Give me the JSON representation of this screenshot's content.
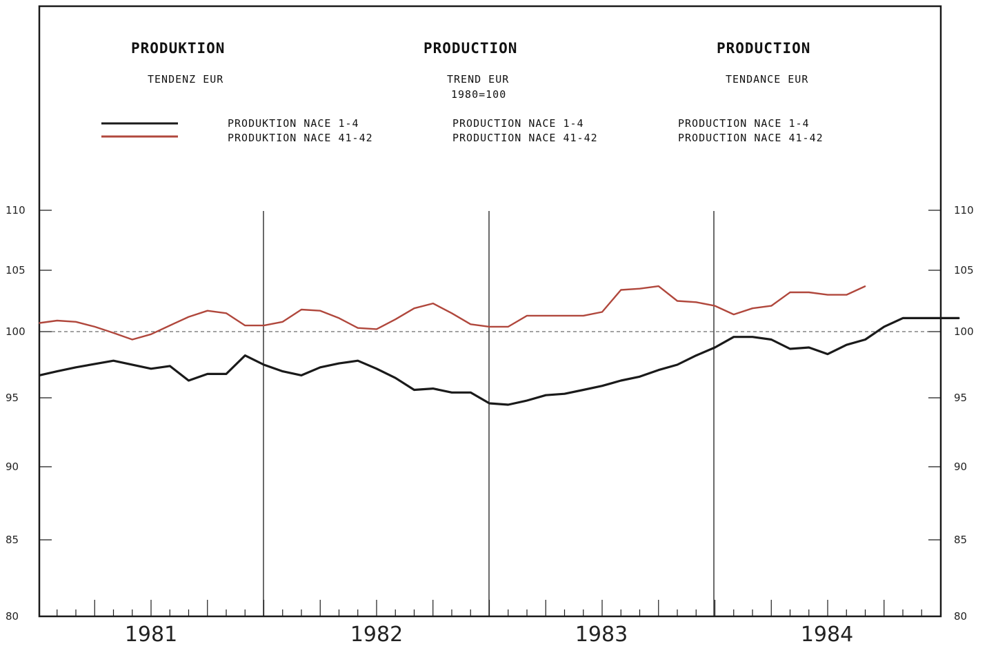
{
  "headers": {
    "de": {
      "title": "PRODUKTION",
      "subtitle": "TENDENZ EUR",
      "legend_1": "PRODUKTION NACE 1-4",
      "legend_2": "PRODUKTION NACE 41-42"
    },
    "en": {
      "title": "PRODUCTION",
      "subtitle": "TREND EUR",
      "base": "1980=100",
      "legend_1": "PRODUCTION NACE 1-4",
      "legend_2": "PRODUCTION NACE 41-42"
    },
    "fr": {
      "title": "PRODUCTION",
      "subtitle": "TENDANCE EUR",
      "legend_1": "PRODUCTION NACE 1-4",
      "legend_2": "PRODUCTION NACE 41-42"
    }
  },
  "colors": {
    "series_1": "#1a1a1a",
    "series_2": "#b0473c",
    "axis": "#1a1a1a",
    "reference": "#444444"
  },
  "chart_data": {
    "type": "line",
    "x_unit": "month index from Jan 1981 (0 = Jan 1981)",
    "x_categories": [
      "1981",
      "1982",
      "1983",
      "1984"
    ],
    "y_ticks": [
      80,
      85,
      90,
      95,
      100,
      105,
      110
    ],
    "ylim": [
      80,
      112
    ],
    "reference_line": 100,
    "year_dividers": [
      "1981/1982",
      "1982/1983",
      "1983/1984"
    ],
    "grid": false,
    "legend": "top",
    "series": [
      {
        "name": "PRODUKTION NACE 1-4",
        "points": [
          [
            -6,
            96.7
          ],
          [
            -5,
            97.0
          ],
          [
            -4,
            97.3
          ],
          [
            -2,
            97.8
          ],
          [
            0,
            97.2
          ],
          [
            1,
            97.4
          ],
          [
            2,
            96.3
          ],
          [
            3,
            96.8
          ],
          [
            4,
            96.8
          ],
          [
            5,
            98.2
          ],
          [
            6,
            97.5
          ],
          [
            7,
            97.0
          ],
          [
            8,
            96.7
          ],
          [
            9,
            97.3
          ],
          [
            10,
            97.6
          ],
          [
            11,
            97.8
          ],
          [
            12,
            97.2
          ],
          [
            13,
            96.5
          ],
          [
            14,
            95.6
          ],
          [
            15,
            95.7
          ],
          [
            16,
            95.4
          ],
          [
            17,
            95.4
          ],
          [
            18,
            94.6
          ],
          [
            19,
            94.5
          ],
          [
            20,
            94.8
          ],
          [
            21,
            95.2
          ],
          [
            22,
            95.3
          ],
          [
            23,
            95.6
          ],
          [
            24,
            95.9
          ],
          [
            25,
            96.3
          ],
          [
            26,
            96.6
          ],
          [
            27,
            97.1
          ],
          [
            28,
            97.5
          ],
          [
            29,
            98.2
          ],
          [
            30,
            98.8
          ],
          [
            31,
            99.6
          ],
          [
            32,
            99.6
          ],
          [
            33,
            99.4
          ],
          [
            34,
            98.7
          ],
          [
            35,
            98.8
          ],
          [
            36,
            98.3
          ],
          [
            37,
            99.0
          ],
          [
            38,
            99.4
          ],
          [
            39,
            100.4
          ],
          [
            40,
            101.1
          ],
          [
            41,
            101.1
          ],
          [
            42,
            101.1
          ],
          [
            43,
            101.1
          ]
        ]
      },
      {
        "name": "PRODUKTION NACE 41-42",
        "points": [
          [
            -6,
            100.7
          ],
          [
            -5,
            100.9
          ],
          [
            -4,
            100.8
          ],
          [
            -3,
            100.4
          ],
          [
            -2,
            99.9
          ],
          [
            -1,
            99.4
          ],
          [
            0,
            99.8
          ],
          [
            1,
            100.5
          ],
          [
            2,
            101.2
          ],
          [
            3,
            101.7
          ],
          [
            4,
            101.5
          ],
          [
            5,
            100.5
          ],
          [
            6,
            100.5
          ],
          [
            7,
            100.8
          ],
          [
            8,
            101.8
          ],
          [
            9,
            101.7
          ],
          [
            10,
            101.1
          ],
          [
            11,
            100.3
          ],
          [
            12,
            100.2
          ],
          [
            13,
            101.0
          ],
          [
            14,
            101.9
          ],
          [
            15,
            102.3
          ],
          [
            16,
            101.5
          ],
          [
            17,
            100.6
          ],
          [
            18,
            100.4
          ],
          [
            19,
            100.4
          ],
          [
            20,
            101.3
          ],
          [
            21,
            101.3
          ],
          [
            22,
            101.3
          ],
          [
            23,
            101.3
          ],
          [
            24,
            101.6
          ],
          [
            25,
            103.4
          ],
          [
            26,
            103.5
          ],
          [
            27,
            103.7
          ],
          [
            28,
            102.5
          ],
          [
            29,
            102.4
          ],
          [
            30,
            102.1
          ],
          [
            31,
            101.4
          ],
          [
            32,
            101.9
          ],
          [
            33,
            102.1
          ],
          [
            34,
            103.2
          ],
          [
            35,
            103.2
          ],
          [
            36,
            103.0
          ],
          [
            37,
            103.0
          ],
          [
            38,
            103.7
          ]
        ]
      }
    ]
  }
}
